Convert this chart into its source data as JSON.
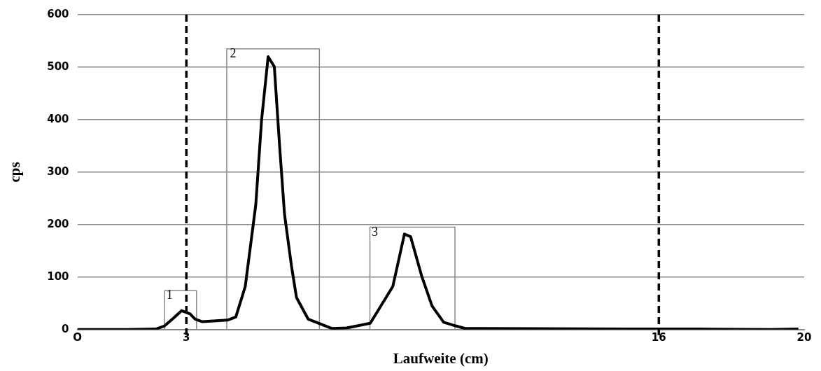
{
  "chart_data": {
    "type": "line",
    "xlabel": "Laufweite (cm)",
    "ylabel": "cps",
    "xlim": [
      0,
      20
    ],
    "xticks": [
      {
        "value": 0,
        "label": "O"
      },
      3,
      16,
      20
    ],
    "ylim": [
      0,
      600
    ],
    "yticks": [
      0,
      100,
      200,
      300,
      400,
      500,
      600
    ],
    "grid": "y",
    "legend": false,
    "marker": "none",
    "line_style": "solid",
    "series": [
      {
        "color": "#000000",
        "x": [
          0,
          1.38,
          2.16,
          2.4,
          2.65,
          2.87,
          3.1,
          3.24,
          3.44,
          4.13,
          4.36,
          4.62,
          4.91,
          5.07,
          5.25,
          5.42,
          5.56,
          5.7,
          5.89,
          6.03,
          6.35,
          6.68,
          7.01,
          7.41,
          8.06,
          8.68,
          9.0,
          9.17,
          9.47,
          9.76,
          10.08,
          10.41,
          10.67,
          11.2,
          15.13,
          17.09,
          19.06,
          19.84
        ],
        "values": [
          0,
          0,
          1,
          7,
          22,
          36,
          30,
          20,
          15,
          18,
          24,
          82,
          238,
          400,
          520,
          501,
          355,
          220,
          122,
          61,
          20,
          11,
          2,
          3,
          12,
          82,
          182,
          177,
          103,
          45,
          14,
          7,
          2,
          2,
          1,
          1,
          0,
          1
        ]
      },
      {
        "color": "#888888",
        "x": [
          2.4,
          2.4,
          3.28,
          3.28
        ],
        "values": [
          0,
          74,
          74,
          0
        ]
      },
      {
        "color": "#888888",
        "x": [
          4.11,
          4.11,
          6.66,
          6.66
        ],
        "values": [
          0,
          535,
          535,
          0
        ]
      },
      {
        "color": "#888888",
        "x": [
          8.05,
          8.05,
          10.39,
          10.39
        ],
        "values": [
          0,
          195,
          195,
          0
        ]
      }
    ],
    "ref_lines": [
      {
        "axis": "x",
        "value": 3,
        "color": "#000000",
        "line_style": "dashed"
      },
      {
        "axis": "x",
        "value": 16,
        "color": "#000000",
        "line_style": "dashed"
      }
    ],
    "annotations": [
      {
        "text": "1",
        "x": 2.45,
        "y": 65
      },
      {
        "text": "2",
        "x": 4.2,
        "y": 525
      },
      {
        "text": "3",
        "x": 8.1,
        "y": 185
      }
    ]
  }
}
